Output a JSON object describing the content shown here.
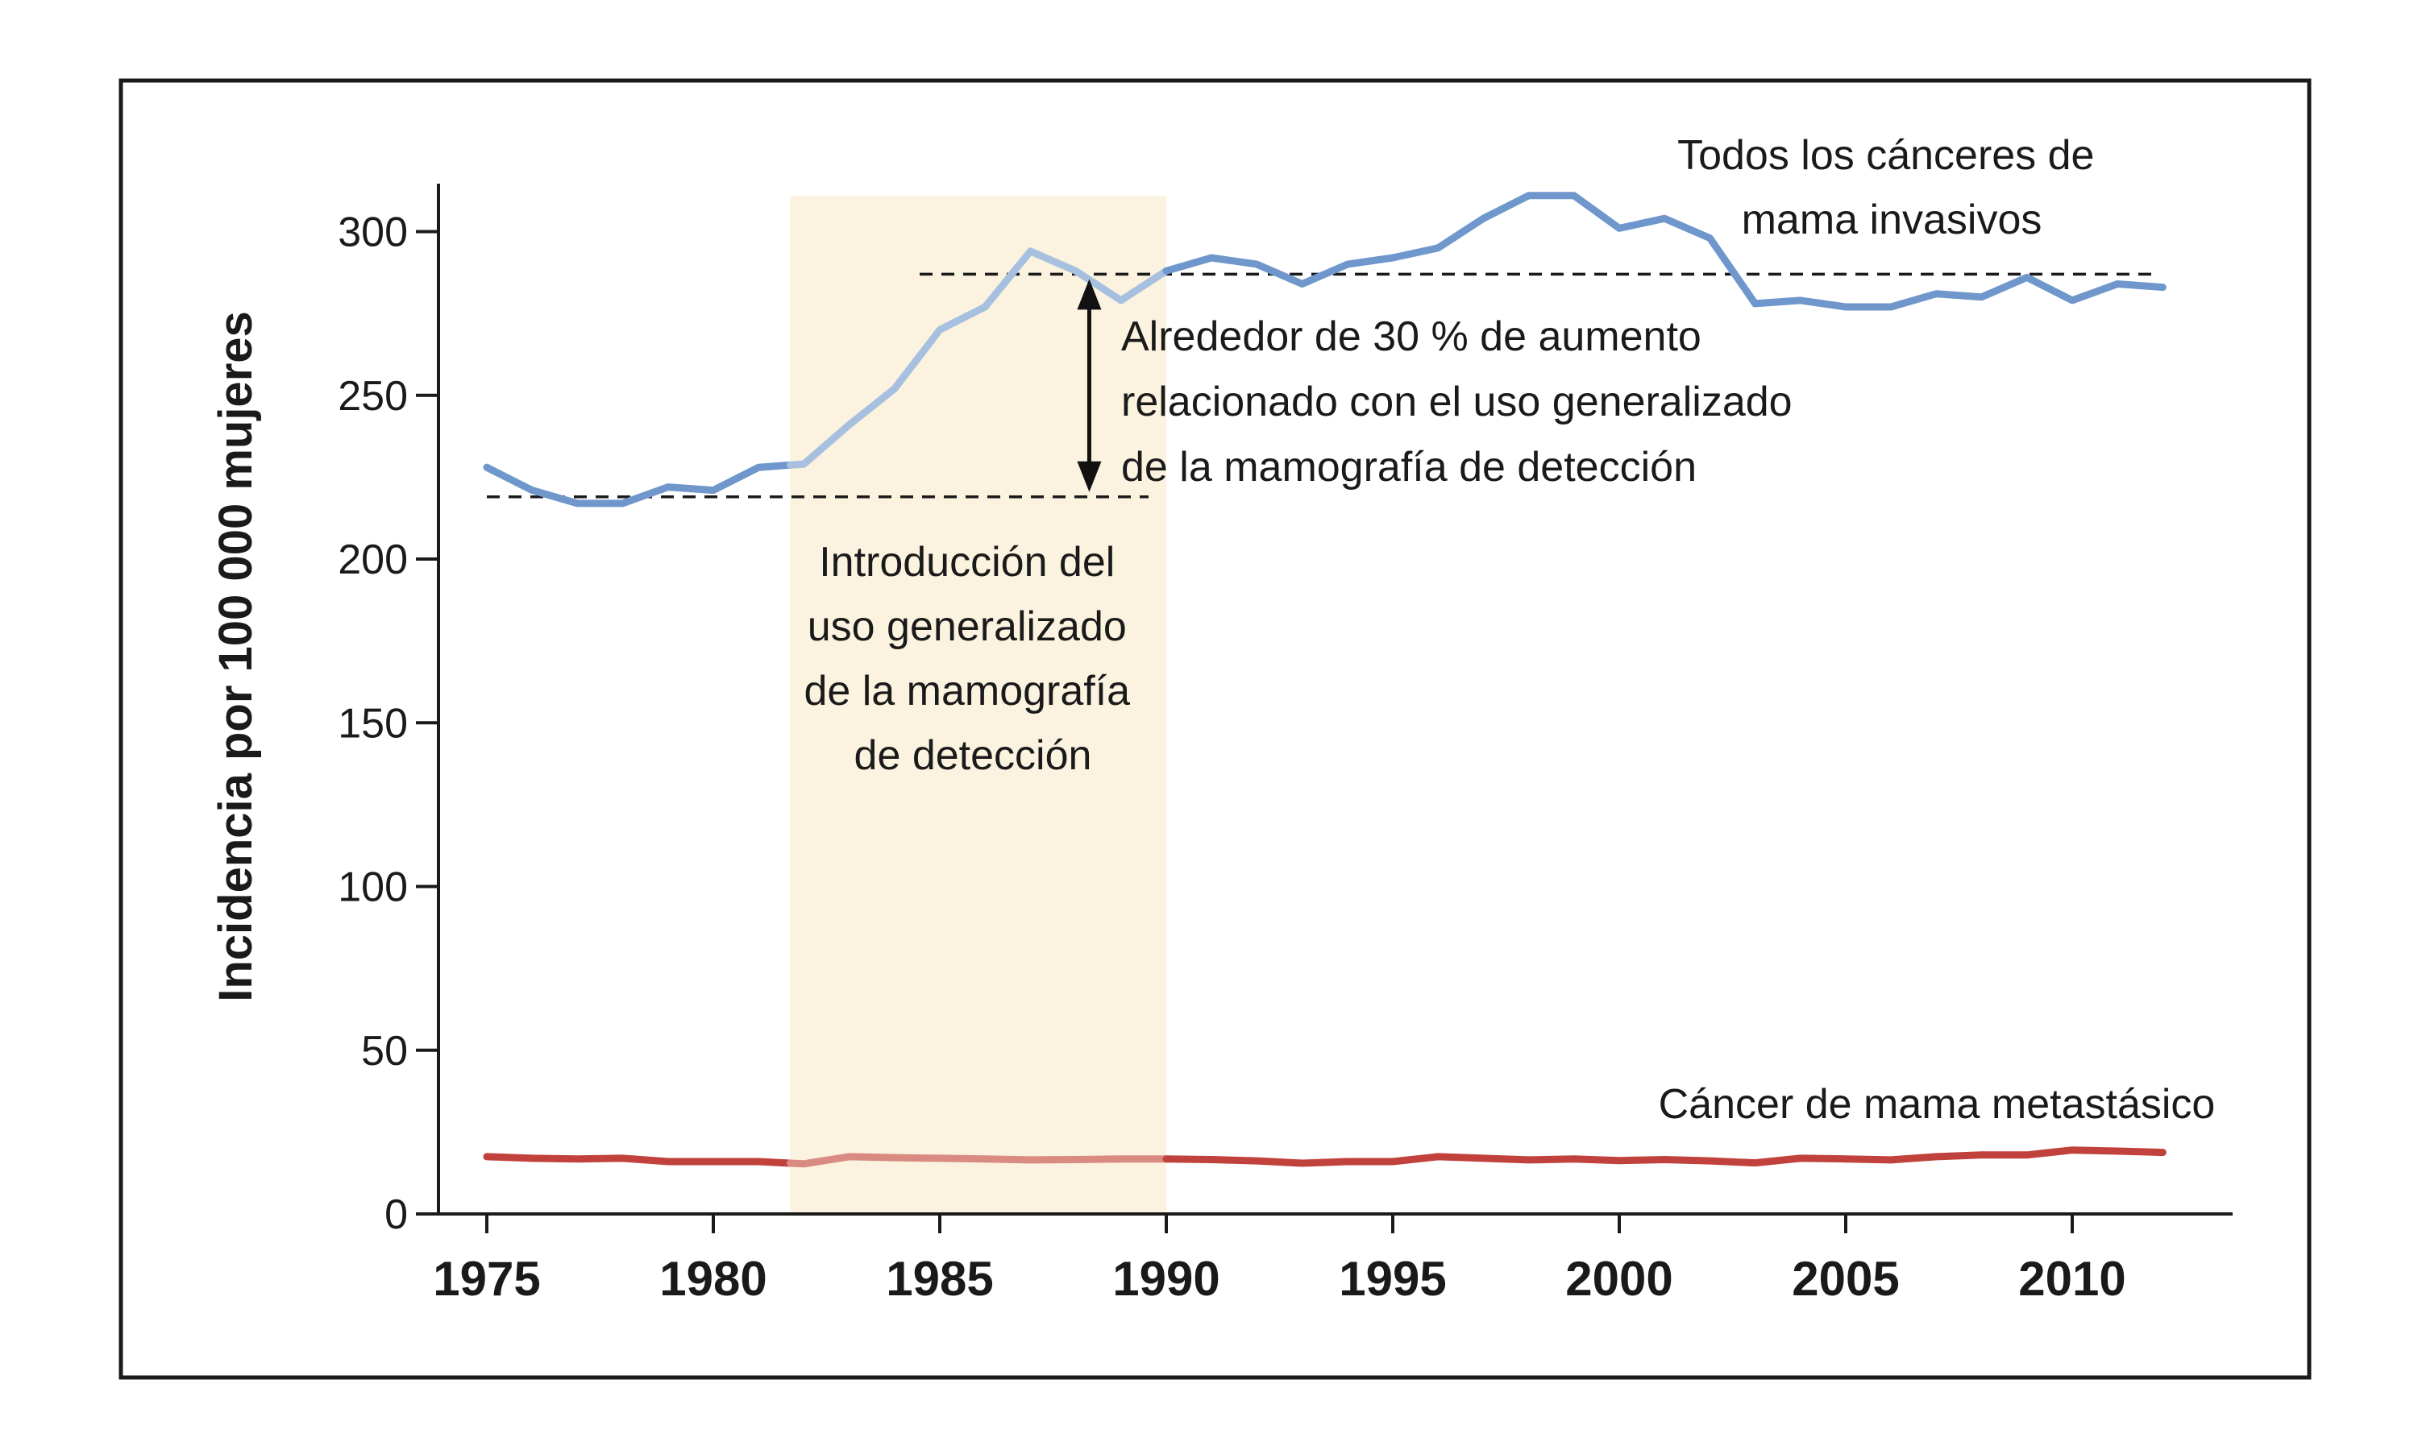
{
  "chart_data": {
    "type": "line",
    "xlabel": "",
    "ylabel": "Incidencia por 100 000 mujeres",
    "xlim": [
      1975,
      2012
    ],
    "ylim": [
      0,
      300
    ],
    "x_ticks": [
      "1975",
      "1980",
      "1985",
      "1990",
      "1995",
      "2000",
      "2005",
      "2010"
    ],
    "y_ticks": [
      "0",
      "50",
      "100",
      "150",
      "200",
      "250",
      "300"
    ],
    "grid": false,
    "x": [
      1975,
      1976,
      1977,
      1978,
      1979,
      1980,
      1981,
      1982,
      1983,
      1984,
      1985,
      1986,
      1987,
      1988,
      1989,
      1990,
      1991,
      1992,
      1993,
      1994,
      1995,
      1996,
      1997,
      1998,
      1999,
      2000,
      2001,
      2002,
      2003,
      2004,
      2005,
      2006,
      2007,
      2008,
      2009,
      2010,
      2011,
      2012
    ],
    "series": [
      {
        "name": "Todos los cánceres de mama invasivos",
        "color": "#6f97cc",
        "values": [
          228,
          221,
          217,
          217,
          222,
          221,
          228,
          229,
          241,
          252,
          270,
          277,
          294,
          288,
          279,
          288,
          292,
          290,
          284,
          290,
          292,
          295,
          304,
          311,
          311,
          301,
          304,
          298,
          278,
          279,
          277,
          277,
          281,
          280,
          286,
          279,
          284,
          283
        ]
      },
      {
        "name": "Cáncer de mama metastásico",
        "color": "#c1423d",
        "values": [
          17.5,
          17,
          16.8,
          17,
          16,
          16,
          16,
          15.3,
          17.5,
          17.2,
          17,
          16.8,
          16.5,
          16.6,
          16.8,
          16.8,
          16.6,
          16.2,
          15.5,
          16,
          16,
          17.5,
          17,
          16.5,
          16.8,
          16.3,
          16.6,
          16.2,
          15.6,
          17,
          16.8,
          16.5,
          17.5,
          18,
          18,
          19.5,
          19.2,
          18.8
        ]
      }
    ],
    "highlight_region": {
      "x": [
        1981.7,
        1990
      ],
      "label": "Introducción del uso generalizado de la mamografía de detección"
    },
    "reference_lines": [
      {
        "y": 219,
        "x": [
          1975,
          1990
        ]
      },
      {
        "y": 287,
        "x": [
          1985,
          2012
        ]
      }
    ],
    "annotations": {
      "increase": "Alrededor de 30 % de aumento relacionado con el uso generalizado de la mamografía de detección"
    },
    "legend": "inline labels"
  },
  "labels": {
    "series_invasive": [
      "Todos los cánceres de",
      "mama invasivos"
    ],
    "series_metastatic": "Cáncer de mama metastásico",
    "region": [
      "Introducción del",
      "uso generalizado",
      "de la mamografía",
      "de detección"
    ],
    "increase": [
      "Alrededor de 30 % de aumento",
      "relacionado con el uso generalizado",
      "de la mamografía de detección"
    ]
  },
  "colors": {
    "invasive": "#6f97cc",
    "invasive_faded": "#a7c0df",
    "metastatic": "#c1423d",
    "metastatic_faded": "#d98b82",
    "region": "#fbf3df"
  }
}
